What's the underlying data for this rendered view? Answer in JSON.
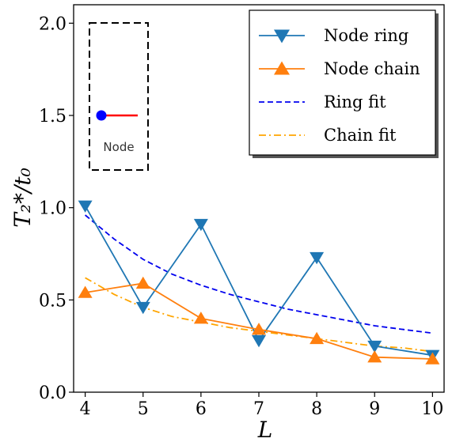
{
  "chart_data": {
    "type": "line",
    "xlabel": "L",
    "ylabel": "T₂*/t₀",
    "xlim": [
      3.8,
      10.2
    ],
    "ylim": [
      0.0,
      2.1
    ],
    "xticks": [
      4,
      5,
      6,
      7,
      8,
      9,
      10
    ],
    "yticks": [
      0.0,
      0.5,
      1.0,
      1.5,
      2.0
    ],
    "xtick_labels": [
      "4",
      "5",
      "6",
      "7",
      "8",
      "9",
      "10"
    ],
    "ytick_labels": [
      "0.0",
      "0.5",
      "1.0",
      "1.5",
      "2.0"
    ],
    "x": [
      4,
      5,
      6,
      7,
      8,
      9,
      10
    ],
    "grid": false,
    "legend_position": "top-right",
    "series": [
      {
        "name": "Node ring",
        "values": [
          1.01,
          0.46,
          0.91,
          0.28,
          0.73,
          0.25,
          0.2
        ],
        "color": "#1f77b4",
        "marker": "triangle-down",
        "style": "solid"
      },
      {
        "name": "Node chain",
        "values": [
          0.54,
          0.59,
          0.4,
          0.34,
          0.29,
          0.19,
          0.18
        ],
        "color": "#ff7f0e",
        "marker": "triangle-up",
        "style": "solid"
      }
    ],
    "fits": [
      {
        "name": "Ring fit",
        "x": [
          4.0,
          4.5,
          5.0,
          5.5,
          6.0,
          6.5,
          7.0,
          7.5,
          8.0,
          8.5,
          9.0,
          9.5,
          10.0
        ],
        "values": [
          0.96,
          0.83,
          0.72,
          0.64,
          0.58,
          0.53,
          0.49,
          0.45,
          0.42,
          0.39,
          0.36,
          0.34,
          0.32
        ],
        "color": "#0000ee",
        "style": "dashed"
      },
      {
        "name": "Chain fit",
        "x": [
          4.0,
          4.5,
          5.0,
          5.5,
          6.0,
          6.5,
          7.0,
          7.5,
          8.0,
          8.5,
          9.0,
          9.5,
          10.0
        ],
        "values": [
          0.62,
          0.53,
          0.46,
          0.41,
          0.38,
          0.35,
          0.33,
          0.31,
          0.29,
          0.27,
          0.25,
          0.24,
          0.22
        ],
        "color": "#ffa500",
        "style": "dashdot"
      }
    ]
  },
  "inset": {
    "label": "Node",
    "node_color": "#0000ff",
    "edge_color": "#ff0000"
  }
}
